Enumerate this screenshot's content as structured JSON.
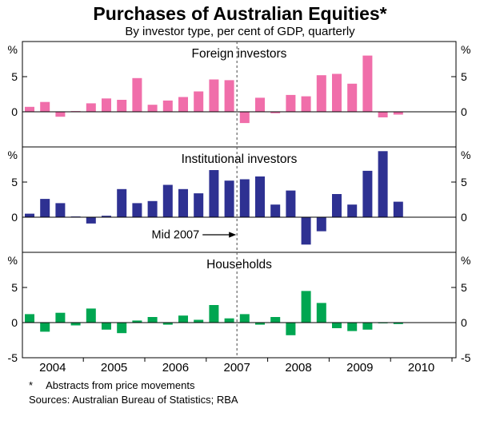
{
  "footer": {
    "footnote_marker": "*",
    "footnote_text": "Abstracts from price movements",
    "sources": "Sources: Australian Bureau of Statistics; RBA"
  },
  "chart_data": {
    "type": "bar",
    "title": "Purchases of Australian Equities*",
    "subtitle": "By investor type, per cent of GDP, quarterly",
    "unit": "%",
    "frequency": "quarterly",
    "layout_hint": "three stacked panels, shared x axis, y labels on both sides, no gridlines",
    "ylim": [
      -5,
      10
    ],
    "yticks_labeled": [
      [
        5,
        0
      ],
      [
        5,
        0
      ],
      [
        5,
        0,
        -5
      ]
    ],
    "x_axis_labels": [
      "2004",
      "2005",
      "2006",
      "2007",
      "2008",
      "2009",
      "2010"
    ],
    "categories": [
      "Q1 2004",
      "Q2 2004",
      "Q3 2004",
      "Q4 2004",
      "Q1 2005",
      "Q2 2005",
      "Q3 2005",
      "Q4 2005",
      "Q1 2006",
      "Q2 2006",
      "Q3 2006",
      "Q4 2006",
      "Q1 2007",
      "Q2 2007",
      "Q3 2007",
      "Q4 2007",
      "Q1 2008",
      "Q2 2008",
      "Q3 2008",
      "Q4 2008",
      "Q1 2009",
      "Q2 2009",
      "Q3 2009",
      "Q4 2009",
      "Q1 2010"
    ],
    "series": [
      {
        "name": "Foreign investors",
        "color": "#f06eaa",
        "values": [
          0.7,
          1.4,
          -0.7,
          0.1,
          1.2,
          1.9,
          1.7,
          4.8,
          1.0,
          1.6,
          2.1,
          2.9,
          4.6,
          4.5,
          -1.6,
          2.0,
          -0.2,
          2.4,
          2.2,
          5.2,
          5.4,
          4.0,
          8.0,
          -0.8,
          -0.4
        ]
      },
      {
        "name": "Institutional investors",
        "color": "#2e3192",
        "values": [
          0.5,
          2.6,
          2.0,
          0.1,
          -0.9,
          0.2,
          4.0,
          2.0,
          2.3,
          4.6,
          4.0,
          3.4,
          6.7,
          5.2,
          5.4,
          5.8,
          1.8,
          3.8,
          -3.9,
          -2.0,
          3.3,
          1.8,
          6.6,
          9.4,
          2.2
        ]
      },
      {
        "name": "Households",
        "color": "#00a651",
        "values": [
          1.2,
          -1.3,
          1.4,
          -0.4,
          2.0,
          -1.0,
          -1.5,
          0.3,
          0.8,
          -0.3,
          1.0,
          0.4,
          2.5,
          0.6,
          1.2,
          -0.3,
          0.8,
          -1.8,
          4.5,
          2.8,
          -0.8,
          -1.2,
          -1.0,
          -0.1,
          -0.2
        ]
      }
    ],
    "annotation": {
      "text": "Mid 2007",
      "points_to": "vertical dashed line at mid-2007",
      "panel": "Institutional investors"
    }
  }
}
